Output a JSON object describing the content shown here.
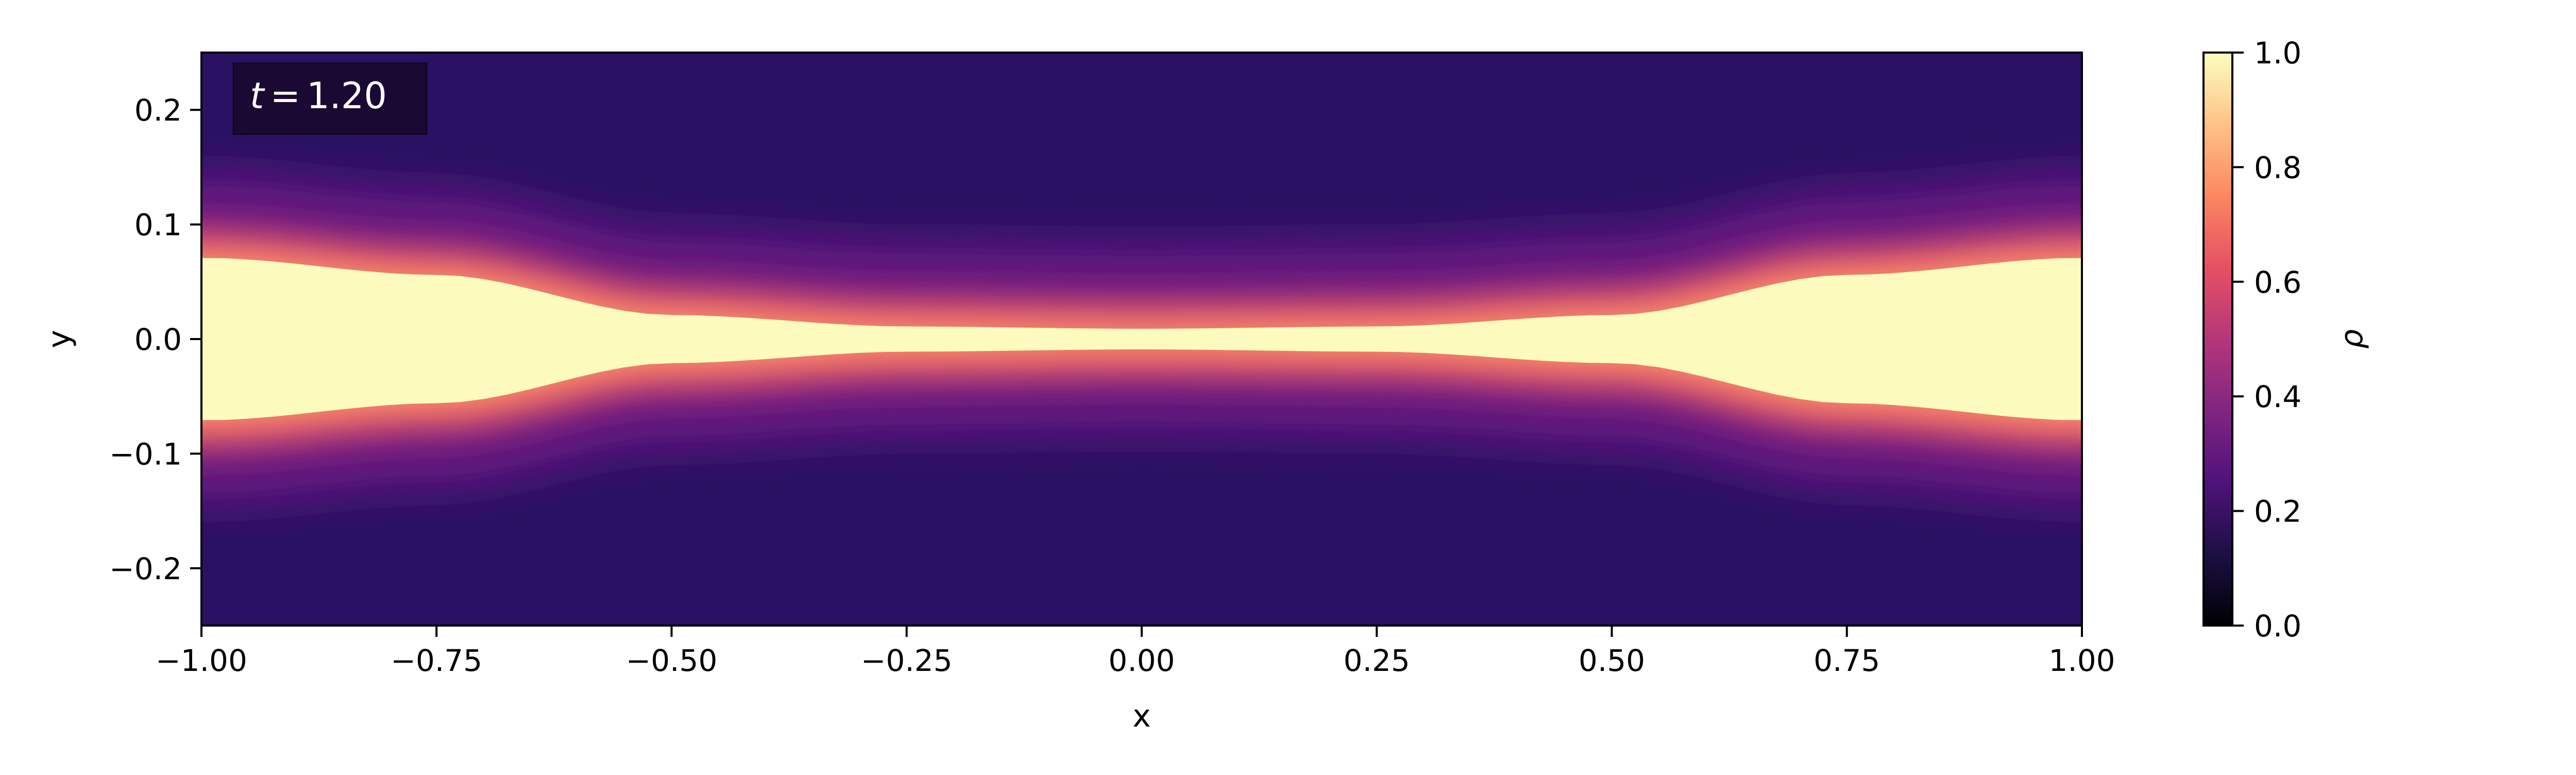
{
  "chart_data": {
    "type": "heatmap",
    "title": "",
    "xlabel": "x",
    "ylabel": "y",
    "xlim": [
      -1.0,
      1.0
    ],
    "ylim": [
      -0.25,
      0.25
    ],
    "x_ticks": [
      -1.0,
      -0.75,
      -0.5,
      -0.25,
      0.0,
      0.25,
      0.5,
      0.75,
      1.0
    ],
    "x_tick_labels": [
      "−1.00",
      "−0.75",
      "−0.50",
      "−0.25",
      "0.00",
      "0.25",
      "0.50",
      "0.75",
      "1.00"
    ],
    "y_ticks": [
      0.2,
      0.1,
      0.0,
      -0.1,
      -0.2
    ],
    "y_tick_labels": [
      "0.2",
      "0.1",
      "0.0",
      "−0.1",
      "−0.2"
    ],
    "annotation": {
      "variable": "t",
      "equals": "=",
      "value": "1.20",
      "background": "#1a0a33"
    },
    "colorbar": {
      "label": "ρ",
      "colormap": "magma",
      "range": [
        0.0,
        1.0
      ],
      "ticks": [
        0.0,
        0.2,
        0.4,
        0.6,
        0.8,
        1.0
      ],
      "tick_labels": [
        "0.0",
        "0.2",
        "0.4",
        "0.6",
        "0.8",
        "1.0"
      ]
    },
    "field": {
      "description_points_x": [
        -1.0,
        -0.75,
        -0.5,
        -0.25,
        0.0,
        0.25,
        0.5,
        0.75,
        1.0
      ],
      "dense_band_half_width": [
        0.075,
        0.06,
        0.025,
        0.015,
        0.013,
        0.015,
        0.025,
        0.06,
        0.075
      ],
      "core_density": 1.0,
      "background_density": 0.2,
      "halo_density": 0.3
    },
    "grid": false,
    "colors": {
      "magma_stops": [
        "#000004",
        "#1c1044",
        "#4f127b",
        "#812581",
        "#b5367a",
        "#e55064",
        "#fb8761",
        "#fec287",
        "#fcfdbf"
      ]
    }
  }
}
